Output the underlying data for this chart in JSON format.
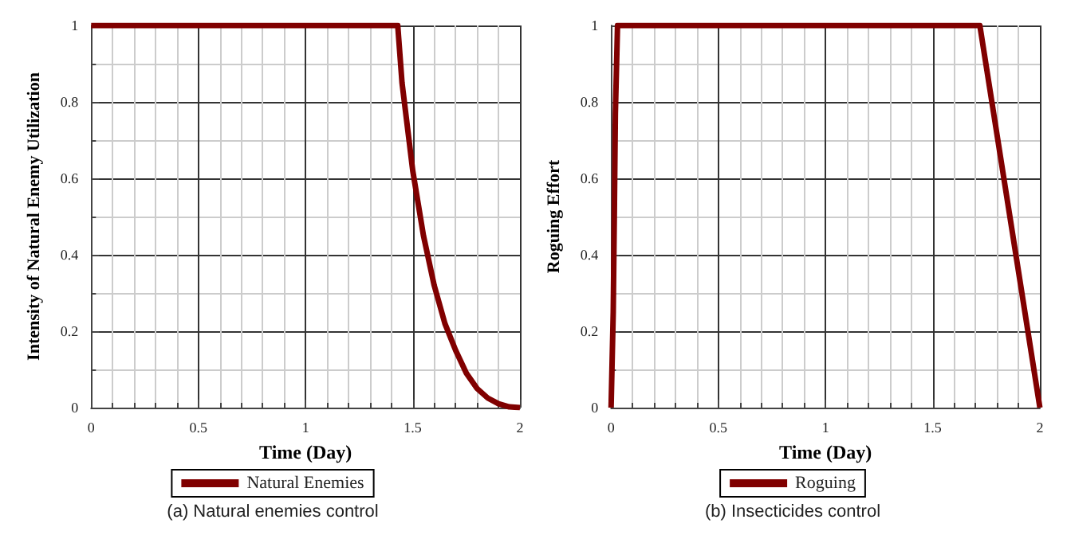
{
  "chart_data": [
    {
      "type": "line",
      "xlabel": "Time (Day)",
      "ylabel": "Intensity of Natural Enemy Utilization",
      "annotations": [
        "(a) Natural enemies control"
      ],
      "legend": "bottom",
      "grid": true,
      "marker": "none",
      "line_style": "solid",
      "xlim": [
        0,
        2
      ],
      "xticks": [
        0,
        0.5,
        1,
        1.5,
        2
      ],
      "ylim": [
        0,
        1
      ],
      "yticks": [
        0,
        0.2,
        0.4,
        0.6,
        0.8,
        1
      ],
      "series": [
        {
          "name": "Natural Enemies",
          "color": "#800000",
          "x": [
            0,
            1.43,
            1.45,
            1.5,
            1.55,
            1.6,
            1.65,
            1.7,
            1.75,
            1.8,
            1.85,
            1.9,
            1.95,
            2
          ],
          "values": [
            1,
            1,
            0.85,
            0.62,
            0.45,
            0.32,
            0.22,
            0.15,
            0.09,
            0.05,
            0.025,
            0.01,
            0.002,
            0
          ]
        }
      ]
    },
    {
      "type": "line",
      "xlabel": "Time (Day)",
      "ylabel": "Roguing Effort",
      "annotations": [
        "(b) Insecticides control"
      ],
      "legend": "bottom",
      "grid": true,
      "marker": "none",
      "line_style": "solid",
      "xlim": [
        0,
        2
      ],
      "xticks": [
        0,
        0.5,
        1,
        1.5,
        2
      ],
      "ylim": [
        0,
        1
      ],
      "yticks": [
        0,
        0.2,
        0.4,
        0.6,
        0.8,
        1
      ],
      "series": [
        {
          "name": "Roguing",
          "color": "#800000",
          "x": [
            0,
            0.01,
            0.015,
            0.02,
            0.03,
            1.72,
            2
          ],
          "values": [
            0,
            0.25,
            0.5,
            0.77,
            1,
            1,
            0
          ]
        }
      ]
    }
  ]
}
